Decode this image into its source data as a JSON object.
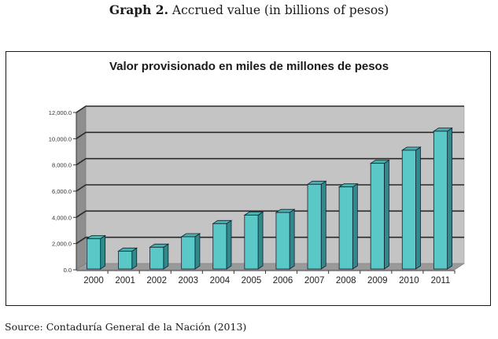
{
  "caption": {
    "lead": "Graph 2.",
    "text": "Accrued value (in billions of pesos)"
  },
  "source": "Source: Contaduría General de la Nación (2013)",
  "colors": {
    "bar_front": "#5BC8C8",
    "bar_side": "#2E8B8B",
    "bar_top": "#4AB3B0",
    "wall": "#C4C4C4",
    "side_wall": "#8E8E8E",
    "floor": "#9A9A9A",
    "gridline": "#2a2a2a"
  },
  "chart_data": {
    "type": "bar",
    "style": "3d-column",
    "title": "Valor provisionado en miles de millones de pesos",
    "xlabel": "",
    "ylabel": "",
    "categories": [
      "2000",
      "2001",
      "2002",
      "2003",
      "2004",
      "2005",
      "2006",
      "2007",
      "2008",
      "2009",
      "2010",
      "2011"
    ],
    "values": [
      2550,
      1600,
      1900,
      2700,
      3700,
      4350,
      4550,
      6700,
      6500,
      8300,
      9300,
      10750
    ],
    "ylim": [
      0,
      12000
    ],
    "yticks": [
      0,
      2000,
      4000,
      6000,
      8000,
      10000,
      12000
    ],
    "ytick_labels": [
      "0.0",
      "2,000.0",
      "4,000.0",
      "6,000.0",
      "8,000.0",
      "10,000.0",
      "12,000.0"
    ],
    "grid": true,
    "legend": "none"
  }
}
